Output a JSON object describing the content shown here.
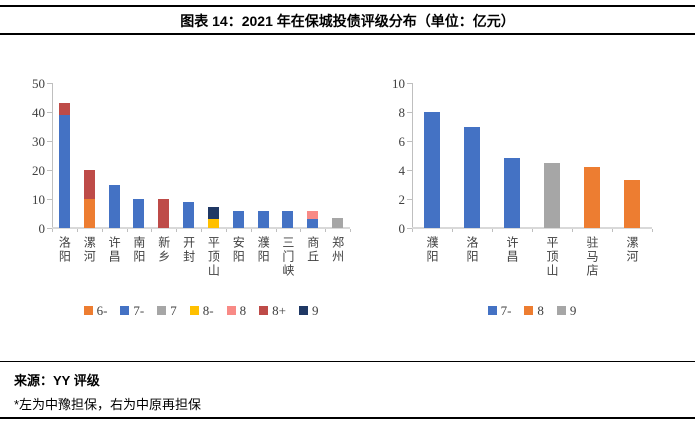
{
  "header": {
    "title": "图表 14：2021 年在保城投债评级分布（单位：亿元）"
  },
  "footer": {
    "source": "来源：YY 评级",
    "note": "*左为中豫担保，右为中原再担保"
  },
  "colors": {
    "blue_7minus": "#4472C4",
    "orange": "#ED7D31",
    "gray": "#A6A6A6",
    "yellow_8minus": "#FFC000",
    "pink_8": "#F88A86",
    "brick_8plus": "#BE4B48",
    "navy_9": "#1F3864",
    "axis_line": "#BFBFBF",
    "baseline": "#D9D9D9",
    "tick_text": "#404040",
    "rule": "#000000"
  },
  "chart_data": [
    {
      "type": "bar",
      "stacked": true,
      "title": "",
      "note": "左：中豫担保",
      "categories": [
        "洛阳",
        "漯河",
        "许昌",
        "南阳",
        "新乡",
        "开封",
        "平顶山",
        "安阳",
        "濮阳",
        "三门峡",
        "商丘",
        "郑州"
      ],
      "series": [
        {
          "name": "6-",
          "color": "#ED7D31",
          "values": [
            0,
            10,
            0,
            0,
            0,
            0,
            0,
            0,
            0,
            0,
            0,
            0
          ]
        },
        {
          "name": "7-",
          "color": "#4472C4",
          "values": [
            39,
            0,
            15,
            10,
            0,
            9,
            0,
            6,
            6,
            6,
            3,
            0
          ]
        },
        {
          "name": "7",
          "color": "#A6A6A6",
          "values": [
            0,
            0,
            0,
            0,
            0,
            0,
            0,
            0,
            0,
            0,
            0,
            3.5
          ]
        },
        {
          "name": "8-",
          "color": "#FFC000",
          "values": [
            0,
            0,
            0,
            0,
            0,
            0,
            3,
            0,
            0,
            0,
            0,
            0
          ]
        },
        {
          "name": "8",
          "color": "#F88A86",
          "values": [
            0,
            0,
            0,
            0,
            0,
            0,
            0,
            0,
            0,
            0,
            3,
            0
          ]
        },
        {
          "name": "8+",
          "color": "#BE4B48",
          "values": [
            4,
            10,
            0,
            0,
            10,
            0,
            0,
            0,
            0,
            0,
            0,
            0
          ]
        },
        {
          "name": "9",
          "color": "#1F3864",
          "values": [
            0,
            0,
            0,
            0,
            0,
            0,
            4.3,
            0,
            0,
            0,
            0,
            0
          ]
        }
      ],
      "ylim": [
        0,
        50
      ],
      "yticks": [
        0,
        10,
        20,
        30,
        40,
        50
      ],
      "legend": [
        "6-",
        "7-",
        "7",
        "8-",
        "8",
        "8+",
        "9"
      ],
      "legend_position": "bottom",
      "grid": false
    },
    {
      "type": "bar",
      "stacked": true,
      "title": "",
      "note": "右：中原再担保",
      "categories": [
        "濮阳",
        "洛阳",
        "许昌",
        "平顶山",
        "驻马店",
        "漯河"
      ],
      "series": [
        {
          "name": "7-",
          "color": "#4472C4",
          "values": [
            8,
            7,
            4.8,
            0,
            0,
            0
          ]
        },
        {
          "name": "8",
          "color": "#ED7D31",
          "values": [
            0,
            0,
            0,
            0,
            4.2,
            3.3
          ]
        },
        {
          "name": "9",
          "color": "#A6A6A6",
          "values": [
            0,
            0,
            0,
            4.5,
            0,
            0
          ]
        }
      ],
      "ylim": [
        0,
        10
      ],
      "yticks": [
        0,
        2,
        4,
        6,
        8,
        10
      ],
      "legend": [
        "7-",
        "8",
        "9"
      ],
      "legend_position": "bottom",
      "grid": false
    }
  ]
}
